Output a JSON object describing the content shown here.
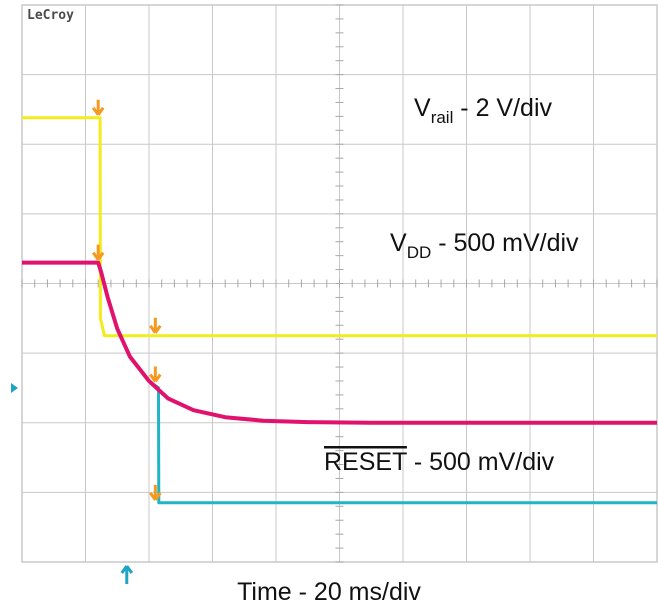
{
  "brand": "LeCroy",
  "time_label": "Time - 20 ms/div",
  "colors": {
    "background": "#ffffff",
    "grid": "#c8c8c8",
    "vrail": "#f2ec1a",
    "vdd": "#e0126e",
    "reset": "#1fb4c6",
    "marker": "#f59a1e",
    "trigger": "#1fa3c6"
  },
  "chart_data": {
    "type": "line",
    "grid": {
      "divisions_x": 10,
      "divisions_y": 8
    },
    "xlabel": "Time - 20 ms/div",
    "series": [
      {
        "name": "Vrail",
        "label_main": "V",
        "label_sub": "rail",
        "label_rest": " - 2 V/div",
        "x_div": [
          0,
          1.23,
          1.235,
          1.3,
          10
        ],
        "y_div": [
          6.38,
          6.38,
          3.5,
          3.25,
          3.25
        ]
      },
      {
        "name": "VDD",
        "label_main": "V",
        "label_sub": "DD",
        "label_rest": " - 500 mV/div",
        "x_div": [
          0,
          1.2,
          1.25,
          1.35,
          1.5,
          1.7,
          2.0,
          2.3,
          2.7,
          3.2,
          3.8,
          4.5,
          5.5,
          7,
          10
        ],
        "y_div": [
          4.3,
          4.3,
          4.15,
          3.8,
          3.35,
          2.95,
          2.6,
          2.35,
          2.18,
          2.08,
          2.03,
          2.01,
          2.0,
          2.0,
          2.0
        ]
      },
      {
        "name": "RESET",
        "label_main": "RESET",
        "label_sub": "",
        "label_rest": " - 500 mV/div",
        "overline": true,
        "x_div": [
          0,
          1.2,
          1.25,
          1.35,
          1.5,
          1.7,
          2.0,
          2.15,
          2.155,
          10
        ],
        "y_div": [
          4.3,
          4.3,
          4.15,
          3.8,
          3.35,
          2.95,
          2.6,
          2.5,
          0.85,
          0.85
        ]
      }
    ],
    "markers": [
      {
        "x_div": 1.2,
        "y_div": 6.38
      },
      {
        "x_div": 1.2,
        "y_div": 4.3
      },
      {
        "x_div": 2.1,
        "y_div": 3.25
      },
      {
        "x_div": 2.1,
        "y_div": 2.55
      },
      {
        "x_div": 2.1,
        "y_div": 0.85
      }
    ],
    "trigger_x_div": 1.65,
    "ground_y_div": 2.5
  }
}
